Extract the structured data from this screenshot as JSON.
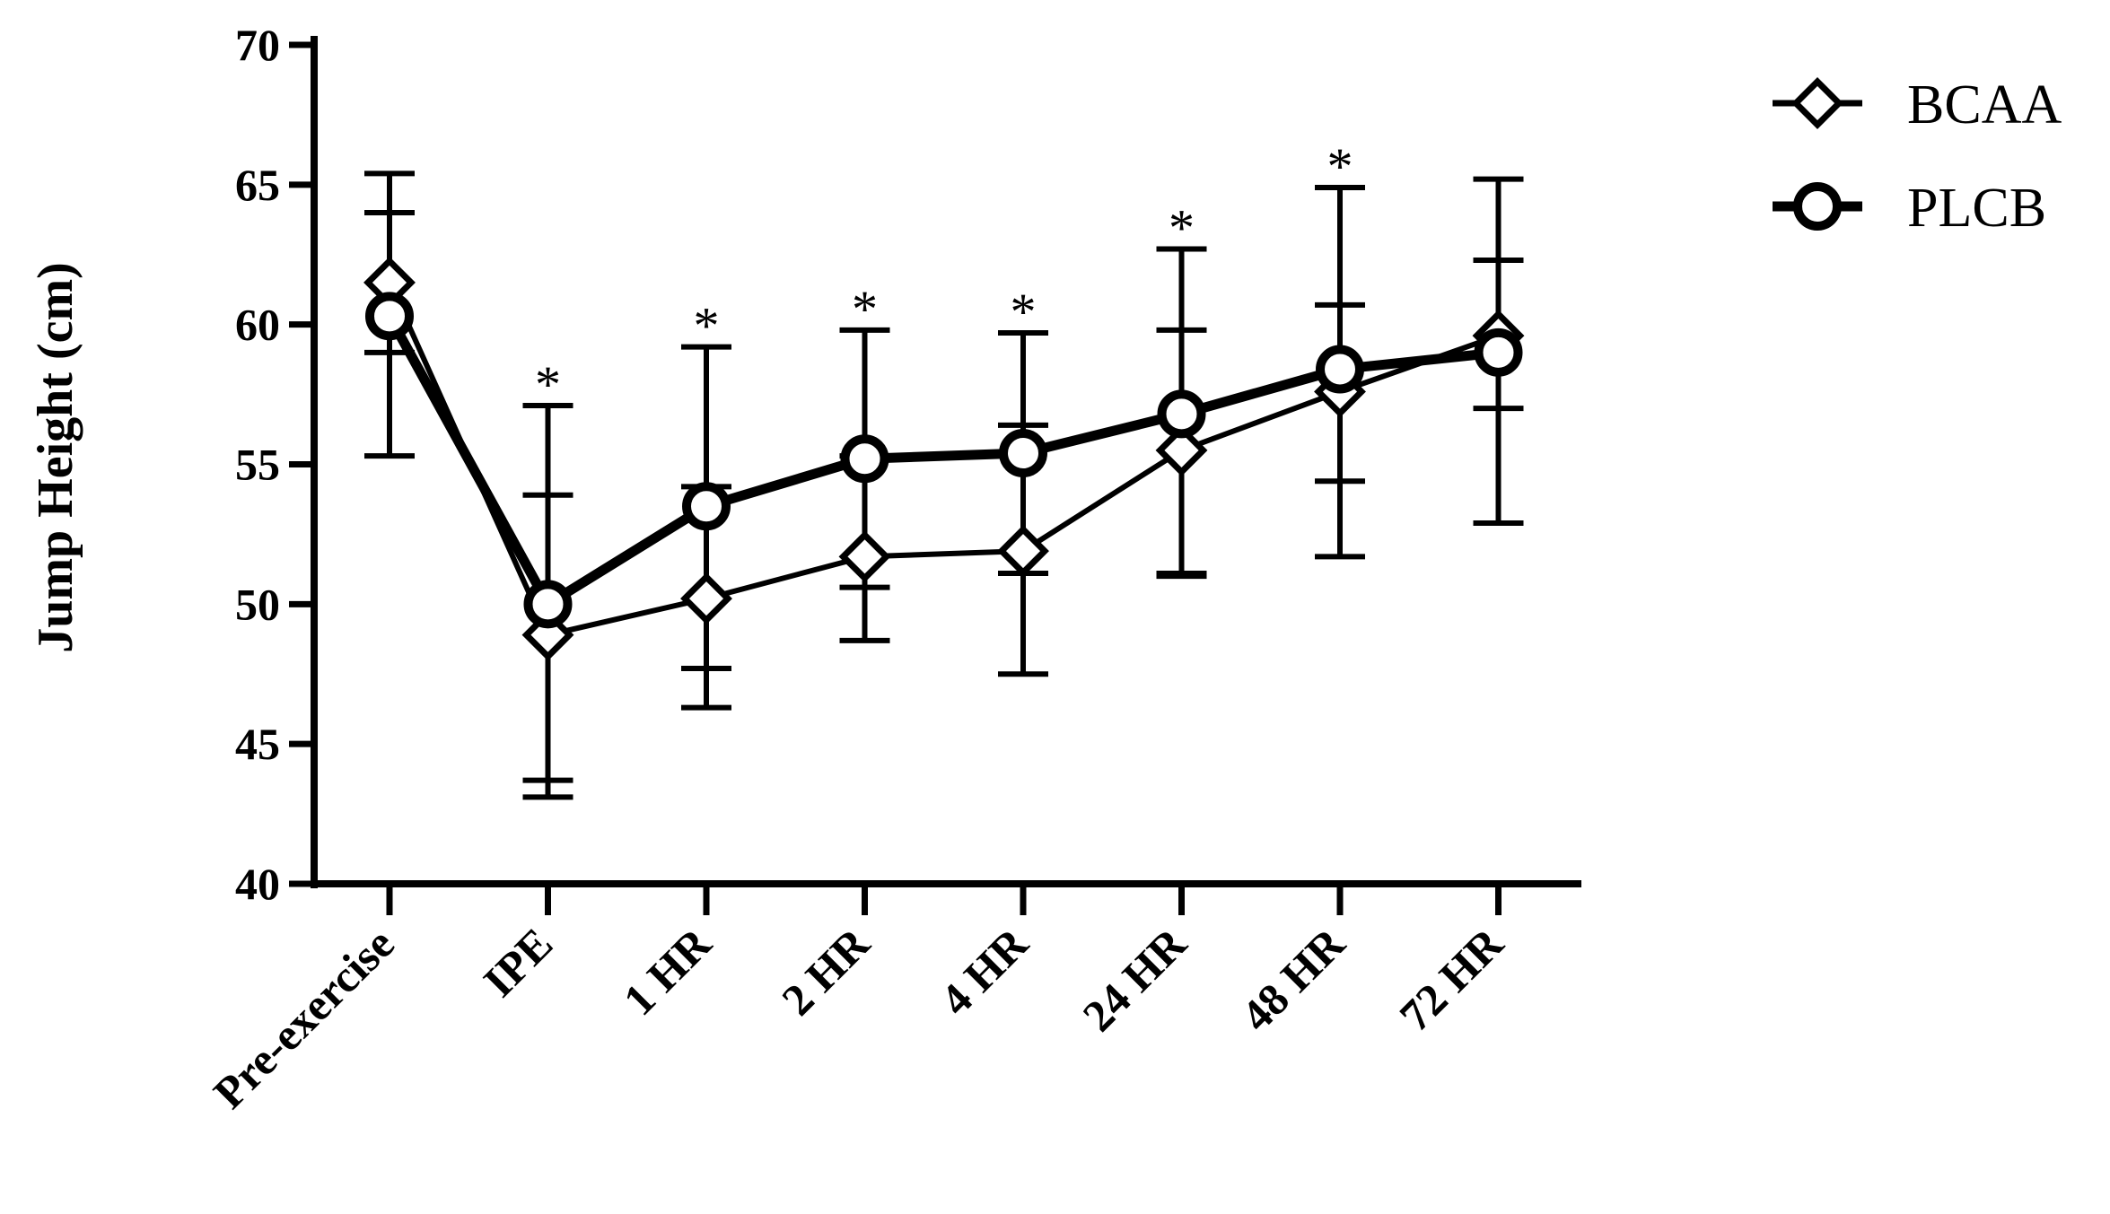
{
  "chart_data": {
    "type": "line",
    "title": "",
    "xlabel": "",
    "ylabel": "Jump Height (cm)",
    "ylim": [
      40,
      70
    ],
    "yticks": [
      40,
      45,
      50,
      55,
      60,
      65,
      70
    ],
    "grid": false,
    "legend_position": "top-right",
    "categories": [
      "Pre-exercise",
      "IPE",
      "1 HR",
      "2 HR",
      "4 HR",
      "24 HR",
      "48 HR",
      "72 HR"
    ],
    "series": [
      {
        "name": "BCAA",
        "marker": "diamond",
        "values": [
          61.5,
          48.9,
          50.2,
          51.7,
          51.9,
          55.5,
          57.6,
          59.6
        ],
        "error_low": [
          55.3,
          43.1,
          46.3,
          48.7,
          47.5,
          51.0,
          51.7,
          52.9
        ],
        "error_high": [
          65.4,
          57.1,
          59.2,
          59.8,
          59.7,
          62.7,
          64.9,
          65.2
        ]
      },
      {
        "name": "PLCB",
        "marker": "circle",
        "values": [
          60.3,
          50.0,
          53.5,
          55.2,
          55.4,
          56.8,
          58.4,
          59.0
        ],
        "error_low": [
          59.0,
          43.7,
          47.7,
          50.6,
          51.1,
          51.1,
          54.4,
          57.0
        ],
        "error_high": [
          64.0,
          53.9,
          54.2,
          55.3,
          56.4,
          59.8,
          60.7,
          62.3
        ]
      }
    ],
    "annotations": [
      {
        "category": "IPE",
        "text": "*"
      },
      {
        "category": "1 HR",
        "text": "*"
      },
      {
        "category": "2 HR",
        "text": "*"
      },
      {
        "category": "4 HR",
        "text": "*"
      },
      {
        "category": "24 HR",
        "text": "*"
      },
      {
        "category": "48 HR",
        "text": "*"
      }
    ],
    "colors": {
      "line": "#000000",
      "background": "#ffffff"
    }
  }
}
